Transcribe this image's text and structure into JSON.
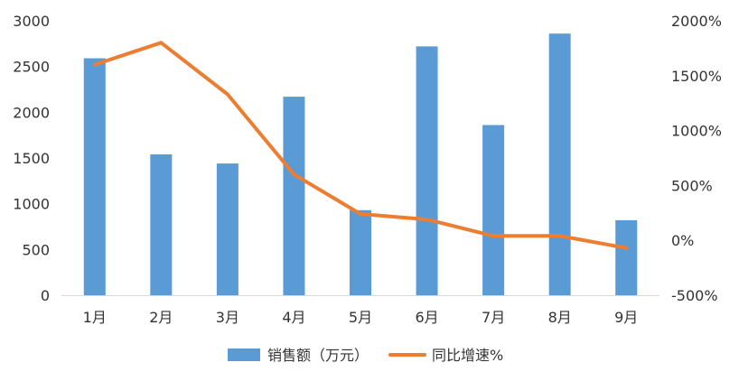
{
  "chart_data": {
    "type": "bar",
    "categories": [
      "1月",
      "2月",
      "3月",
      "4月",
      "5月",
      "6月",
      "7月",
      "8月",
      "9月"
    ],
    "series": [
      {
        "name": "销售额（万元）",
        "type": "bar",
        "axis": "left",
        "color": "#5B9BD5",
        "values": [
          2590,
          1540,
          1440,
          2170,
          930,
          2720,
          1860,
          2860,
          820
        ]
      },
      {
        "name": "同比增速%",
        "type": "line",
        "axis": "right",
        "color": "#ED7D31",
        "values": [
          1600,
          1800,
          1330,
          600,
          240,
          190,
          40,
          40,
          -70
        ]
      }
    ],
    "y_left": {
      "min": 0,
      "max": 3000,
      "ticks": [
        0,
        500,
        1000,
        1500,
        2000,
        2500,
        3000
      ],
      "tick_labels": [
        "0",
        "500",
        "1000",
        "1500",
        "2000",
        "2500",
        "3000"
      ]
    },
    "y_right": {
      "min": -500,
      "max": 2000,
      "ticks": [
        -500,
        0,
        500,
        1000,
        1500,
        2000
      ],
      "tick_labels": [
        "-500%",
        "0%",
        "500%",
        "1000%",
        "1500%",
        "2000%"
      ]
    },
    "grid": false,
    "legend": "bottom-center"
  }
}
